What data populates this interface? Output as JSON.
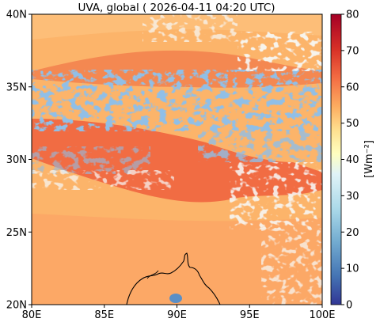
{
  "title": "UVA, global ( 2026-04-11 04:20 UTC)",
  "map": {
    "lon_range": [
      80,
      100
    ],
    "lat_range": [
      20,
      40
    ],
    "x_ticks": [
      {
        "value": 80,
        "label": "80E"
      },
      {
        "value": 85,
        "label": "85E"
      },
      {
        "value": 90,
        "label": "90E"
      },
      {
        "value": 95,
        "label": "95E"
      },
      {
        "value": 100,
        "label": "100E"
      }
    ],
    "y_ticks": [
      {
        "value": 20,
        "label": "20N"
      },
      {
        "value": 25,
        "label": "25N"
      },
      {
        "value": 30,
        "label": "30N"
      },
      {
        "value": 35,
        "label": "35N"
      },
      {
        "value": 40,
        "label": "40N"
      }
    ]
  },
  "colorbar": {
    "label": "[Wm⁻²]",
    "range": [
      0,
      80
    ],
    "colormap": "RdYlBu_r",
    "ticks": [
      {
        "value": 0,
        "label": "0"
      },
      {
        "value": 10,
        "label": "10"
      },
      {
        "value": 20,
        "label": "20"
      },
      {
        "value": 30,
        "label": "30"
      },
      {
        "value": 40,
        "label": "40"
      },
      {
        "value": 50,
        "label": "50"
      },
      {
        "value": 60,
        "label": "60"
      },
      {
        "value": 70,
        "label": "70"
      },
      {
        "value": 80,
        "label": "80"
      }
    ]
  },
  "colors": {
    "ramp": [
      "#313695",
      "#4575b4",
      "#74add1",
      "#abd9e9",
      "#e0f3f8",
      "#fee090",
      "#fdae61",
      "#f46d43",
      "#d73027",
      "#a50026"
    ]
  }
}
